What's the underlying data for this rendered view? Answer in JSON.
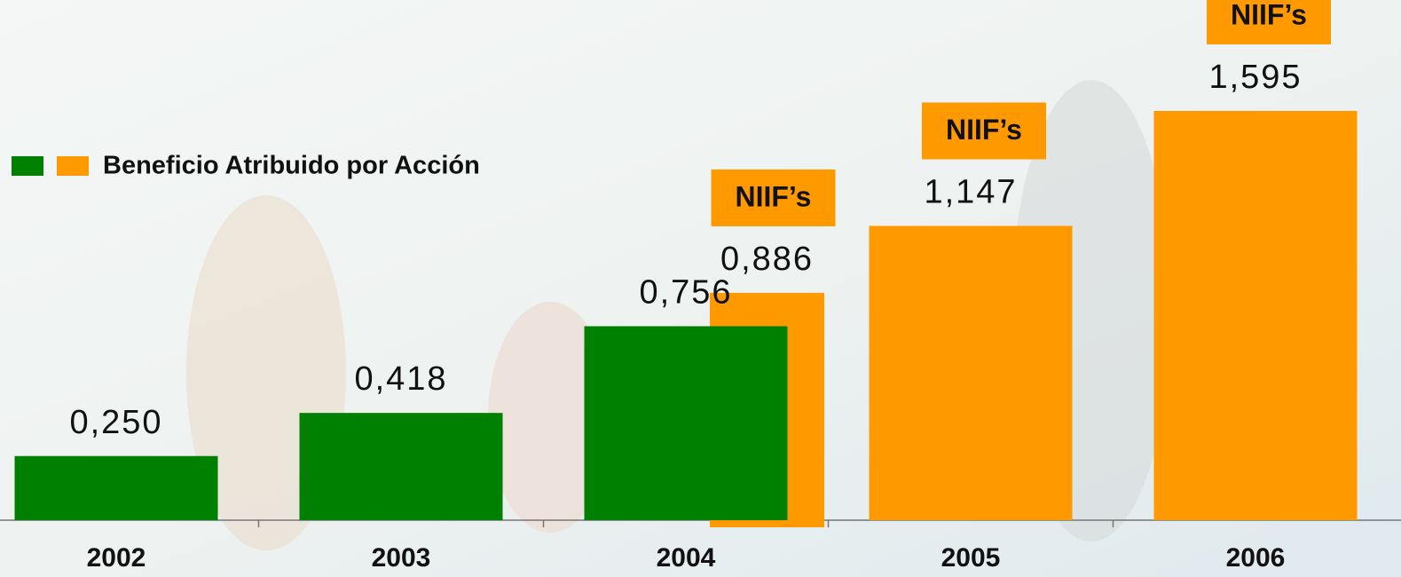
{
  "chart_data": {
    "type": "bar",
    "categories": [
      "2002",
      "2003",
      "2004",
      "2005",
      "2006"
    ],
    "series": [
      {
        "name": "Beneficio Atribuido por Acción",
        "color": "#008000",
        "values": [
          0.25,
          0.418,
          0.756,
          null,
          null
        ],
        "value_labels": [
          "0,250",
          "0,418",
          "0,756",
          null,
          null
        ]
      },
      {
        "color": "#ff9900",
        "values": [
          null,
          null,
          0.886,
          1.147,
          1.595
        ],
        "value_labels": [
          null,
          null,
          "0,886",
          "1,147",
          "1,595"
        ],
        "notes": [
          null,
          null,
          "NIIF’s",
          "NIIF’s",
          "NIIF’s"
        ]
      }
    ]
  }
}
